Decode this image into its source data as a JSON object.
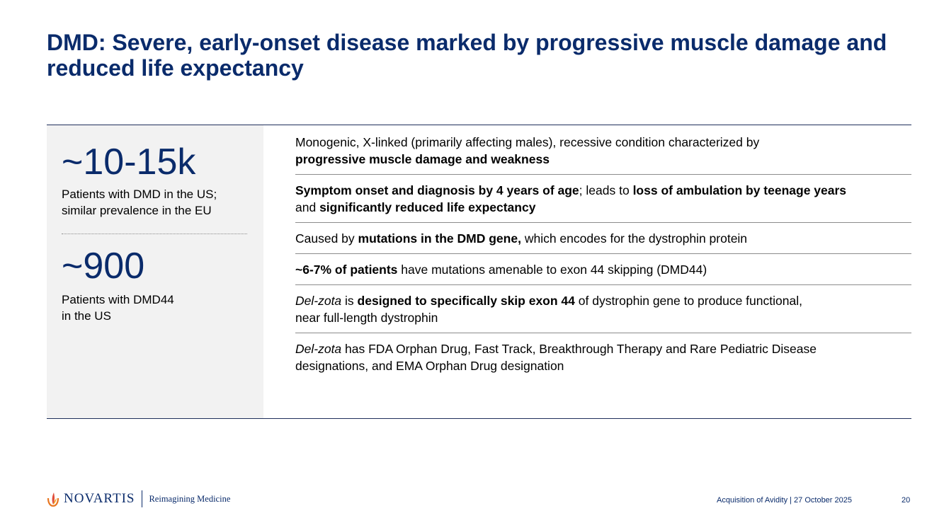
{
  "slide": {
    "title": "DMD: Severe, early-onset disease marked by progressive muscle damage and reduced life expectancy"
  },
  "stats": [
    {
      "value": "~10-15k",
      "description_line1": "Patients with DMD in the US;",
      "description_line2": "similar prevalence in the EU"
    },
    {
      "value": "~900",
      "description_line1": "Patients with DMD44",
      "description_line2": "in the US"
    }
  ],
  "bullets": [
    {
      "text_1": "Monogenic, X-linked (primarily affecting males), recessive condition characterized by",
      "bold_1": "progressive muscle damage and weakness"
    },
    {
      "bold_1": "Symptom onset and diagnosis by 4 years of age",
      "text_1": "; leads to ",
      "bold_2": "loss of ambulation by teenage years",
      "text_2": "and ",
      "bold_3": "significantly reduced life expectancy"
    },
    {
      "text_1": "Caused by ",
      "bold_1": "mutations in the DMD gene,",
      "text_2": " which encodes for the dystrophin protein"
    },
    {
      "bold_1": "~6-7% of patients",
      "text_1": " have mutations amenable to exon 44 skipping (DMD44)"
    },
    {
      "italic_1": "Del-zota",
      "text_1": " is ",
      "bold_1": "designed to specifically skip exon 44",
      "text_2": " of dystrophin gene to produce functional,",
      "text_3": "near full-length dystrophin"
    },
    {
      "italic_1": "Del-zota",
      "text_1": " has FDA Orphan Drug, Fast Track, Breakthrough Therapy and Rare Pediatric Disease",
      "text_2": "designations, and EMA Orphan Drug designation"
    }
  ],
  "footer": {
    "brand": "NOVARTIS",
    "tagline": "Reimagining Medicine",
    "event": "Acquisition of Avidity | 27 October 2025",
    "page_number": "20",
    "brand_color": "#0a2b6b",
    "logo_icon": "novartis-flame-icon"
  }
}
